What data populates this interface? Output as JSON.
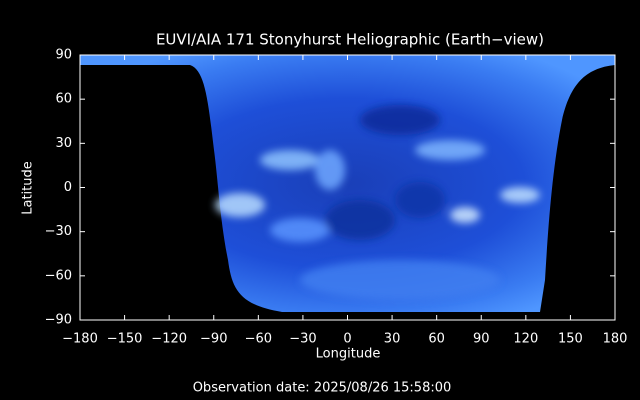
{
  "chart_data": {
    "type": "image",
    "title": "EUVI/AIA 171 Stonyhurst Heliographic (Earth−view)",
    "xlabel": "Longitude",
    "ylabel": "Latitude",
    "xlim": [
      -180,
      180
    ],
    "ylim": [
      -90,
      90
    ],
    "xticks": [
      {
        "value": -180,
        "label": "−180"
      },
      {
        "value": -150,
        "label": "−150"
      },
      {
        "value": -120,
        "label": "−120"
      },
      {
        "value": -90,
        "label": "−90"
      },
      {
        "value": -60,
        "label": "−60"
      },
      {
        "value": -30,
        "label": "−30"
      },
      0,
      30,
      60,
      90,
      120,
      150,
      180
    ],
    "yticks": [
      {
        "value": -90,
        "label": "−90"
      },
      {
        "value": -60,
        "label": "−60"
      },
      {
        "value": -30,
        "label": "−30"
      },
      0,
      30,
      60,
      90
    ],
    "footer": "Observation date: 2025/08/26 15:58:00"
  }
}
